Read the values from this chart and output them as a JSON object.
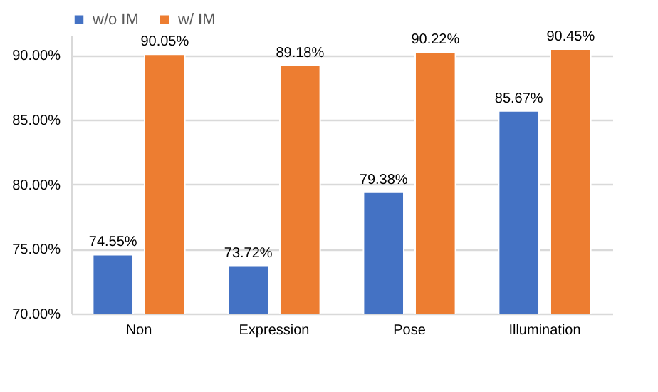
{
  "chart_data": {
    "type": "bar",
    "categories": [
      "Non",
      "Expression",
      "Pose",
      "Illumination"
    ],
    "series": [
      {
        "name": "w/o IM",
        "color": "#4472c4",
        "values": [
          74.55,
          73.72,
          79.38,
          85.67
        ]
      },
      {
        "name": "w/ IM",
        "color": "#ed7d31",
        "values": [
          90.05,
          89.18,
          90.22,
          90.45
        ]
      }
    ],
    "value_labels": [
      [
        "74.55%",
        "73.72%",
        "79.38%",
        "85.67%"
      ],
      [
        "90.05%",
        "89.18%",
        "90.22%",
        "90.45%"
      ]
    ],
    "ylim": [
      70,
      91.5
    ],
    "yticks": [
      {
        "value": 70,
        "label": "70.00%"
      },
      {
        "value": 75,
        "label": "75.00%"
      },
      {
        "value": 80,
        "label": "80.00%"
      },
      {
        "value": 85,
        "label": "85.00%"
      },
      {
        "value": 90,
        "label": "90.00%"
      }
    ],
    "grid": "y",
    "legend": "top"
  }
}
